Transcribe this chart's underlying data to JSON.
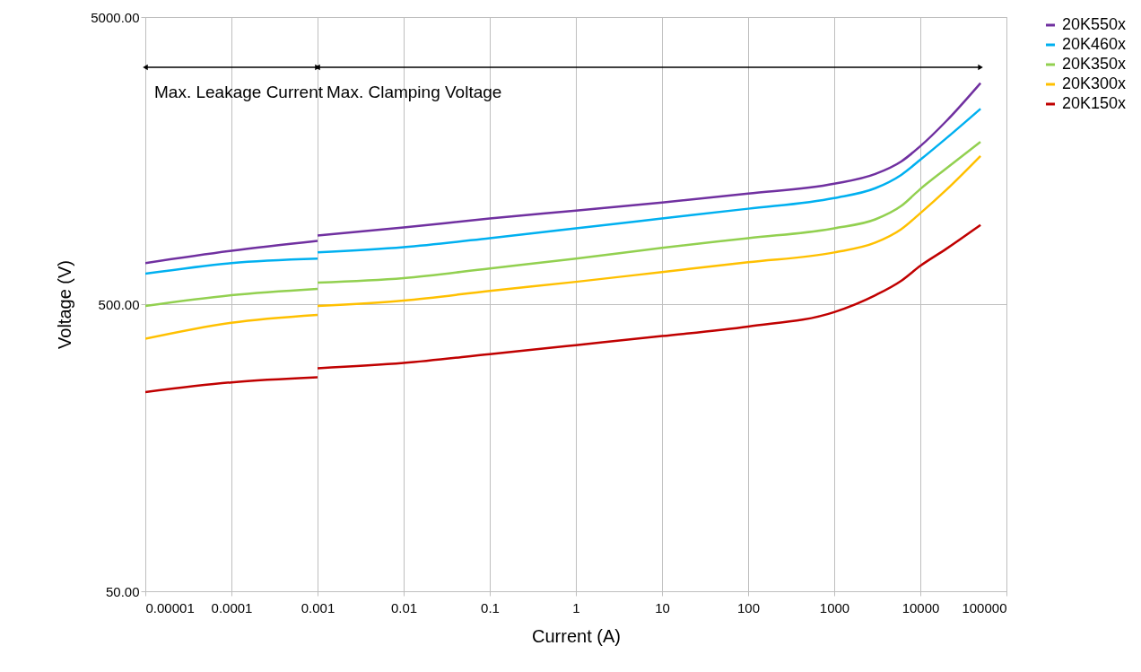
{
  "chart_data": {
    "type": "line",
    "xlabel": "Current (A)",
    "ylabel": "Voltage (V)",
    "x": [
      1e-05,
      0.0001,
      0.001,
      0.001,
      0.01,
      0.1,
      1,
      10,
      100,
      1000,
      3000,
      6000,
      10000,
      20000,
      50000
    ],
    "series": [
      {
        "name": "20K550x",
        "color": "#7030a0",
        "values": [
          695,
          767,
          830,
          867,
          925,
          994,
          1059,
          1130,
          1213,
          1313,
          1420,
          1570,
          1775,
          2170,
          2945
        ]
      },
      {
        "name": "20K460x",
        "color": "#00b0f0",
        "values": [
          638,
          695,
          720,
          757,
          790,
          849,
          919,
          994,
          1075,
          1171,
          1267,
          1410,
          1592,
          1891,
          2396
        ]
      },
      {
        "name": "20K350x",
        "color": "#92d050",
        "values": [
          493,
          537,
          565,
          594,
          616,
          666,
          720,
          785,
          849,
          919,
          987,
          1099,
          1259,
          1484,
          1837
        ]
      },
      {
        "name": "20K300x",
        "color": "#ffc000",
        "values": [
          379,
          431,
          459,
          493,
          515,
          556,
          598,
          647,
          700,
          757,
          819,
          912,
          1037,
          1250,
          1641
        ]
      },
      {
        "name": "20K150x",
        "color": "#c00000",
        "values": [
          247,
          267,
          278,
          299,
          312,
          335,
          360,
          387,
          418,
          469,
          537,
          603,
          680,
          779,
          944
        ]
      }
    ],
    "log": "xy",
    "xlim": [
      1e-05,
      100000
    ],
    "ylim": [
      50,
      5000
    ],
    "xticks": [
      {
        "value": 1e-05,
        "label": "0.00001"
      },
      0.0001,
      0.001,
      0.01,
      0.1,
      1,
      10,
      100,
      1000,
      10000,
      100000
    ],
    "yticks": [
      {
        "value": 50,
        "label": "50.00"
      },
      {
        "value": 500,
        "label": "500.00"
      },
      {
        "value": 5000,
        "label": "5000.00"
      }
    ],
    "annotations": [
      "Max. Leakage Current",
      "Max. Clamping Voltage"
    ],
    "grid": true,
    "legend": "right",
    "marker": "none",
    "line_style": "solid"
  }
}
